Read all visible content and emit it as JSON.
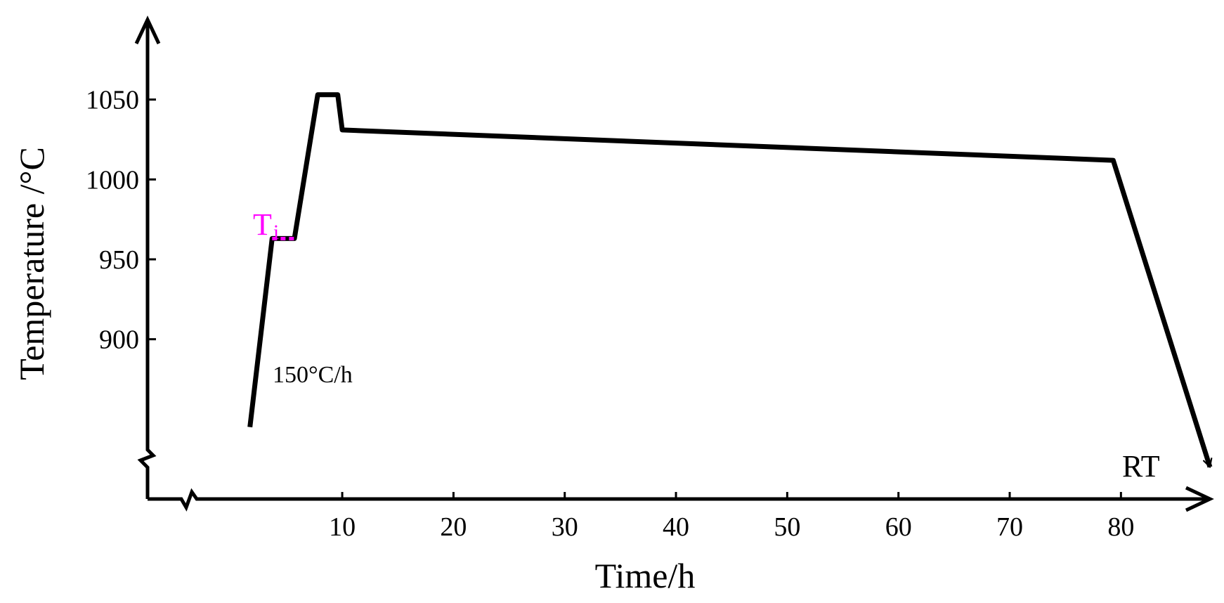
{
  "chart_data": {
    "type": "line",
    "xlabel": "Time/h",
    "ylabel": "Temperature /°C",
    "x_ticks": [
      10,
      20,
      30,
      40,
      50,
      60,
      70,
      80
    ],
    "y_ticks": [
      900,
      950,
      1000,
      1050
    ],
    "xlim": [
      -7.5,
      88
    ],
    "ylim": [
      800,
      1100
    ],
    "grid": false,
    "legend": "none",
    "series": [
      {
        "x": [
          1.7,
          3.7,
          5.7,
          7.8,
          9.6,
          10.0,
          79.3,
          88.0
        ],
        "y": [
          845,
          963,
          963,
          1053,
          1053,
          1031,
          1012,
          820
        ]
      }
    ],
    "annotations": {
      "ramp_rate": "150°C/h",
      "marker": {
        "label": "T",
        "subscript": "i",
        "x": [
          3.7,
          5.7
        ],
        "y": 963
      },
      "end_label": "RT"
    },
    "colors": {
      "line": "#000000",
      "marker": "#ff00ff"
    }
  }
}
